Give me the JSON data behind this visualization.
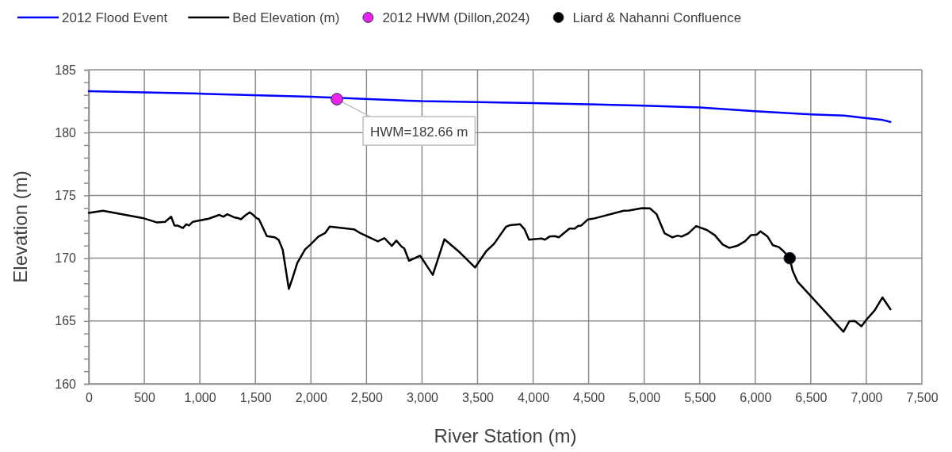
{
  "chart_data": {
    "type": "line",
    "xlabel": "River Station (m)",
    "ylabel": "Elevation (m)",
    "xlim": [
      0,
      7500
    ],
    "ylim": [
      160,
      185
    ],
    "xticks": [
      0,
      500,
      {
        "value": 1000,
        "label": "1,000"
      },
      {
        "value": 1500,
        "label": "1,500"
      },
      {
        "value": 2000,
        "label": "2,000"
      },
      {
        "value": 2500,
        "label": "2,500"
      },
      {
        "value": 3000,
        "label": "3,000"
      },
      {
        "value": 3500,
        "label": "3,500"
      },
      {
        "value": 4000,
        "label": "4,000"
      },
      {
        "value": 4500,
        "label": "4,500"
      },
      {
        "value": 5000,
        "label": "5,000"
      },
      {
        "value": 5500,
        "label": "5,500"
      },
      {
        "value": 6000,
        "label": "6,000"
      },
      {
        "value": 6500,
        "label": "6,500"
      },
      {
        "value": 7000,
        "label": "7,000"
      },
      {
        "value": 7500,
        "label": "7,500"
      }
    ],
    "yticks": [
      160,
      {
        "value": 161,
        "label": null
      },
      {
        "value": 162,
        "label": null
      },
      {
        "value": 163,
        "label": null
      },
      {
        "value": 164,
        "label": null
      },
      165,
      {
        "value": 166,
        "label": null
      },
      {
        "value": 167,
        "label": null
      },
      {
        "value": 168,
        "label": null
      },
      {
        "value": 169,
        "label": null
      },
      170,
      {
        "value": 171,
        "label": null
      },
      {
        "value": 172,
        "label": null
      },
      {
        "value": 173,
        "label": null
      },
      {
        "value": 174,
        "label": null
      },
      175,
      {
        "value": 176,
        "label": null
      },
      {
        "value": 177,
        "label": null
      },
      {
        "value": 178,
        "label": null
      },
      {
        "value": 179,
        "label": null
      },
      180,
      {
        "value": 181,
        "label": null
      },
      {
        "value": 182,
        "label": null
      },
      {
        "value": 183,
        "label": null
      },
      {
        "value": 184,
        "label": null
      },
      185
    ],
    "grid": true,
    "legend": "top",
    "series": [
      {
        "name": "2012 Flood Event",
        "color": "#0000ff",
        "x": [
          0,
          1000,
          2000,
          3000,
          4000,
          5000,
          5500,
          6000,
          6500,
          6800,
          7000,
          7150,
          7217
        ],
        "values": [
          183.3,
          183.1,
          182.85,
          182.5,
          182.35,
          182.15,
          182.0,
          181.7,
          181.45,
          181.35,
          181.15,
          181.0,
          180.85
        ]
      },
      {
        "name": "Bed Elevation (m)",
        "color": "#000000",
        "x": [
          0,
          128,
          485,
          616,
          687,
          742,
          771,
          800,
          847,
          878,
          902,
          937,
          997,
          1080,
          1175,
          1211,
          1247,
          1306,
          1342,
          1370,
          1408,
          1449,
          1473,
          1508,
          1532,
          1603,
          1675,
          1710,
          1746,
          1801,
          1836,
          1877,
          1948,
          1996,
          2067,
          2127,
          2169,
          2388,
          2436,
          2602,
          2662,
          2728,
          2769,
          2816,
          2840,
          2883,
          2983,
          3097,
          3202,
          3340,
          3478,
          3578,
          3649,
          3756,
          3792,
          3882,
          3923,
          3963,
          4077,
          4107,
          4148,
          4196,
          4232,
          4327,
          4375,
          4405,
          4434,
          4494,
          4553,
          4815,
          4862,
          4981,
          5052,
          5112,
          5183,
          5254,
          5302,
          5337,
          5397,
          5468,
          5564,
          5636,
          5707,
          5766,
          5837,
          5909,
          5961,
          6013,
          6047,
          6111,
          6159,
          6213,
          6254,
          6310,
          6337,
          6380,
          6794,
          6848,
          6896,
          6956,
          7003,
          7074,
          7145,
          7217
        ],
        "values": [
          173.6,
          173.78,
          173.2,
          172.84,
          172.9,
          173.3,
          172.6,
          172.6,
          172.4,
          172.7,
          172.6,
          172.9,
          173.0,
          173.15,
          173.45,
          173.3,
          173.5,
          173.26,
          173.2,
          173.1,
          173.4,
          173.65,
          173.5,
          173.2,
          173.1,
          171.76,
          171.66,
          171.45,
          170.67,
          167.55,
          168.46,
          169.62,
          170.71,
          171.09,
          171.72,
          172.0,
          172.52,
          172.3,
          172.04,
          171.34,
          171.6,
          170.98,
          171.4,
          170.92,
          170.78,
          169.8,
          170.2,
          168.67,
          171.51,
          170.46,
          169.26,
          170.56,
          171.15,
          172.5,
          172.63,
          172.71,
          172.3,
          171.47,
          171.57,
          171.47,
          171.72,
          171.76,
          171.66,
          172.36,
          172.36,
          172.56,
          172.6,
          173.09,
          173.17,
          173.78,
          173.8,
          173.99,
          173.97,
          173.5,
          171.99,
          171.66,
          171.8,
          171.72,
          171.97,
          172.56,
          172.25,
          171.83,
          171.09,
          170.82,
          170.98,
          171.36,
          171.83,
          171.87,
          172.14,
          171.72,
          171.03,
          170.88,
          170.56,
          170.0,
          168.99,
          168.14,
          164.14,
          164.99,
          165.0,
          164.58,
          165.13,
          165.83,
          166.88,
          165.93
        ]
      },
      {
        "name": "2012 HWM (Dillon,2024)",
        "type": "scatter",
        "marker": "circle",
        "color": "#ee22ee",
        "x": [
          2234
        ],
        "values": [
          182.66
        ]
      },
      {
        "name": "Liard & Nahanni Confluence",
        "type": "scatter",
        "marker": "circle",
        "color": "#000000",
        "x": [
          6310
        ],
        "values": [
          170.0
        ]
      }
    ],
    "annotations": [
      {
        "text": "HWM=182.66 m",
        "x": 2234,
        "y": 182.66
      }
    ]
  }
}
